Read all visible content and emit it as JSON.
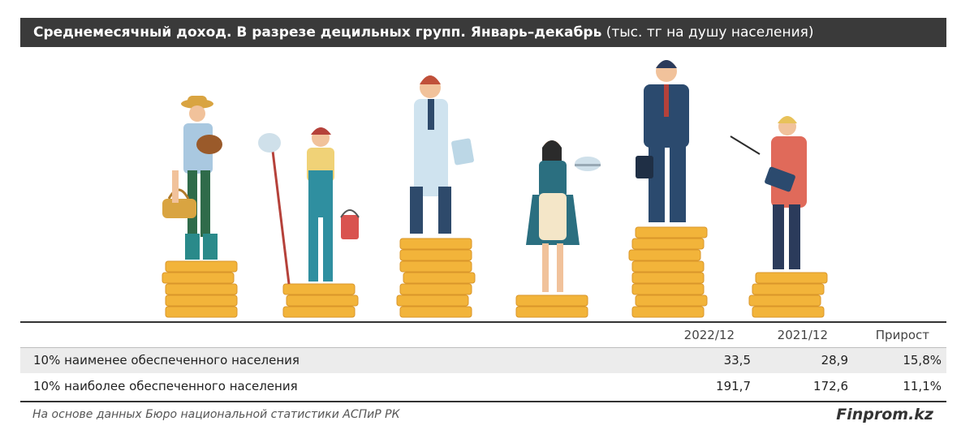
{
  "header": {
    "title_bold": "Среднемесячный доход. В разрезе децильных групп. Январь–декабрь",
    "title_unit": "(тыс. тг на душу населения)"
  },
  "chart_data": {
    "type": "table",
    "columns": [
      "2022/12",
      "2021/12",
      "Прирост"
    ],
    "rows": [
      {
        "label": "10% наименее обеспеченного населения",
        "values": [
          "33,5",
          "28,9",
          "15,8%"
        ]
      },
      {
        "label": "10% наиболее обеспеченного населения",
        "values": [
          "191,7",
          "172,6",
          "11,1%"
        ]
      }
    ]
  },
  "footer": {
    "source": "На основе данных Бюро национальной статистики АСПиР РК",
    "brand": "Finprom.kz"
  },
  "colors": {
    "title_bg": "#3a3a3a",
    "coin": "#f2b43a",
    "coin_dark": "#d9962a",
    "row_shade": "#ececec"
  },
  "illustration": {
    "figures": [
      "farmer-icon",
      "cleaner-icon",
      "doctor-icon",
      "waitress-icon",
      "businessman-icon",
      "teacher-icon"
    ]
  }
}
